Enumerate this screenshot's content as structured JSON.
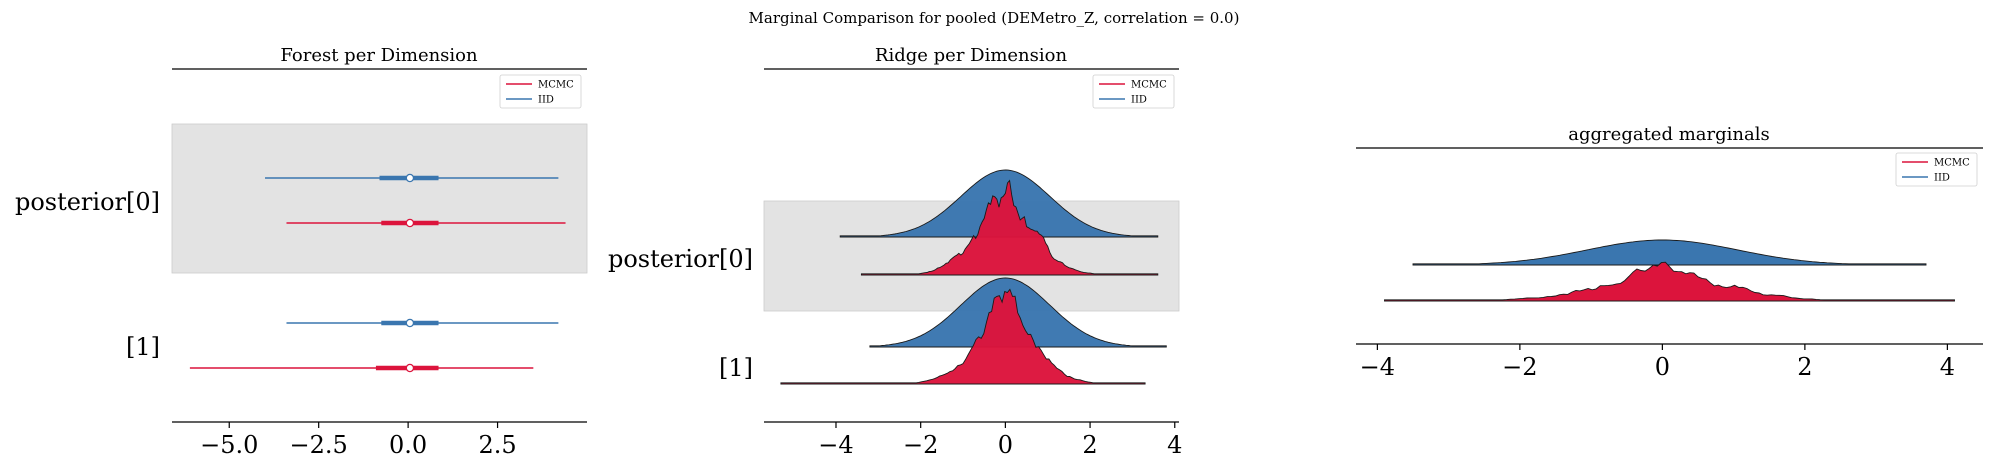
{
  "figure": {
    "suptitle": "Marginal Comparison for pooled (DEMetro_Z, correlation = 0.0)"
  },
  "colors": {
    "mcmc": "#dc143c",
    "mcmc_dark": "#c4112f",
    "iid": "#3a76af",
    "iid_dark": "#346a9d",
    "band": "#e3e3e3",
    "axis": "#000000"
  },
  "legend": {
    "mcmc_label": "MCMC",
    "iid_label": "IID"
  },
  "chart_data": [
    {
      "type": "forest",
      "title": "Forest per Dimension",
      "xlabel": "",
      "ylabel": "",
      "xlim": [
        -6.6,
        5.0
      ],
      "xticks": [
        -5.0,
        -2.5,
        0.0,
        2.5
      ],
      "xtick_labels": [
        "−5.0",
        "−2.5",
        "0.0",
        "2.5"
      ],
      "ytick_labels": [
        "posterior[0]",
        "[1]"
      ],
      "legend_position": "top-right",
      "series": [
        {
          "name": "MCMC",
          "dims": [
            {
              "min": -3.4,
              "q25": -0.75,
              "median": 0.05,
              "q75": 0.85,
              "max": 4.4
            },
            {
              "min": -6.1,
              "q25": -0.9,
              "median": 0.05,
              "q75": 0.85,
              "max": 3.5
            }
          ]
        },
        {
          "name": "IID",
          "dims": [
            {
              "min": -4.0,
              "q25": -0.8,
              "median": 0.05,
              "q75": 0.85,
              "max": 4.2
            },
            {
              "min": -3.4,
              "q25": -0.75,
              "median": 0.05,
              "q75": 0.85,
              "max": 4.2
            }
          ]
        }
      ]
    },
    {
      "type": "ridge",
      "title": "Ridge per Dimension",
      "xlabel": "",
      "ylabel": "",
      "xlim": [
        -5.7,
        4.1
      ],
      "xticks": [
        -4,
        -2,
        0,
        2,
        4
      ],
      "xtick_labels": [
        "−4",
        "−2",
        "0",
        "2",
        "4"
      ],
      "ytick_labels": [
        "posterior[0]",
        "[1]"
      ],
      "legend_position": "top-right",
      "series": [
        {
          "name": "IID",
          "dims": [
            {
              "min": -3.9,
              "max": 3.6
            },
            {
              "min": -3.2,
              "max": 3.8
            }
          ]
        },
        {
          "name": "MCMC",
          "dims": [
            {
              "min": -3.4,
              "max": 3.6
            },
            {
              "min": -5.3,
              "max": 3.3
            }
          ]
        }
      ]
    },
    {
      "type": "ridge",
      "title": "aggregated marginals",
      "xlabel": "",
      "ylabel": "",
      "xlim": [
        -4.3,
        4.5
      ],
      "xticks": [
        -4,
        -2,
        0,
        2,
        4
      ],
      "xtick_labels": [
        "−4",
        "−2",
        "0",
        "2",
        "4"
      ],
      "legend_position": "top-right",
      "series": [
        {
          "name": "IID",
          "min": -3.5,
          "max": 3.7
        },
        {
          "name": "MCMC",
          "min": -3.9,
          "max": 4.1
        }
      ]
    }
  ]
}
